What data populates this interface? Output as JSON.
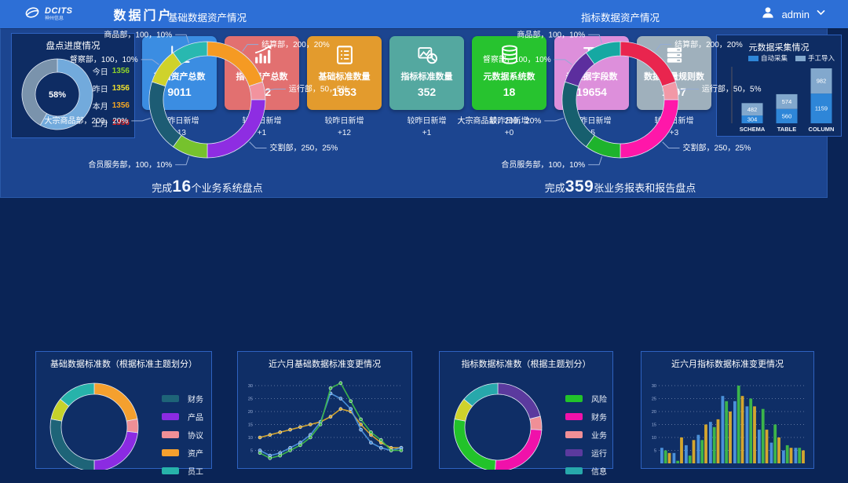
{
  "header": {
    "logo_text": "DCITS",
    "logo_sub": "神州信息",
    "title": "数据门户",
    "user_name": "admin"
  },
  "progress_panel": {
    "title": "盘点进度情况",
    "center_label": "58%",
    "chart_data": {
      "type": "pie",
      "segments": [
        {
          "value": 58,
          "color": "#72aadc"
        },
        {
          "value": 42,
          "color": "#7a93ac"
        }
      ]
    },
    "legend": [
      {
        "label": "今日",
        "value": "1356",
        "color": "#8ed32a"
      },
      {
        "label": "昨日",
        "value": "1356",
        "color": "#f0e12c"
      },
      {
        "label": "本月",
        "value": "1356",
        "color": "#f5a623"
      },
      {
        "label": "上月",
        "value": "1356",
        "color": "#e02020"
      }
    ]
  },
  "kpi_cards": [
    {
      "icon": "line-chart-icon",
      "color": "#3b8de2",
      "label": "基础资产总数",
      "value": "9011",
      "delta_label": "较昨日新增",
      "delta": "+13"
    },
    {
      "icon": "bar-chart-icon",
      "color": "#e27070",
      "label": "指标资产总数",
      "value": "352",
      "delta_label": "较昨日新增",
      "delta": "+1"
    },
    {
      "icon": "list-icon",
      "color": "#e39b2d",
      "label": "基础标准数量",
      "value": "1953",
      "delta_label": "较昨日新增",
      "delta": "+12"
    },
    {
      "icon": "image-chart-icon",
      "color": "#54a8a0",
      "label": "指标标准数量",
      "value": "352",
      "delta_label": "较昨日新增",
      "delta": "+1"
    },
    {
      "icon": "database-icon",
      "color": "#27c32f",
      "label": "元数据系统数",
      "value": "18",
      "delta_label": "较昨日新增",
      "delta": "+0"
    },
    {
      "icon": "field-icon",
      "color": "#dd8fdb",
      "label": "元数据字段数",
      "value": "19654",
      "delta_label": "较昨日新增",
      "delta": "-5"
    },
    {
      "icon": "server-icon",
      "color": "#9fb0bc",
      "label": "数据质量规则数",
      "value": "1397",
      "delta_label": "较昨日新增",
      "delta": "+3"
    }
  ],
  "meta_panel": {
    "title": "元数据采集情况",
    "chart_data": {
      "type": "bar",
      "stacked": true,
      "categories": [
        "SCHEMA",
        "TABLE",
        "COLUMN"
      ],
      "series": [
        {
          "name": "自动采集",
          "color": "#2e86d8",
          "values": [
            304,
            560,
            1159
          ]
        },
        {
          "name": "手工导入",
          "color": "#82a8cd",
          "values": [
            482,
            574,
            982
          ]
        }
      ]
    }
  },
  "asset_panels": [
    {
      "title": "基础数据资产情况",
      "summary": {
        "prefix": "完成",
        "highlight": "16",
        "suffix": "个业务系统盘点"
      },
      "chart_data": {
        "type": "pie",
        "segments": [
          {
            "label": "结算部",
            "value": 200,
            "pct": "20%",
            "color": "#f59a23"
          },
          {
            "label": "运行部",
            "value": 50,
            "pct": "5%",
            "color": "#f2939e"
          },
          {
            "label": "交割部",
            "value": 250,
            "pct": "25%",
            "color": "#8e2de2"
          },
          {
            "label": "合员服务部",
            "value": 100,
            "pct": "10%",
            "color": "#76c22d"
          },
          {
            "label": "大宗商品部",
            "value": 200,
            "pct": "20%",
            "color": "#1d5c74"
          },
          {
            "label": "督察部",
            "value": 100,
            "pct": "10%",
            "color": "#cfd22b"
          },
          {
            "label": "商品部",
            "value": 100,
            "pct": "10%",
            "color": "#29b8b0"
          }
        ]
      }
    },
    {
      "title": "指标数据资产情况",
      "summary": {
        "prefix": "完成",
        "highlight": "359",
        "suffix": "张业务报表和报告盘点"
      },
      "chart_data": {
        "type": "pie",
        "segments": [
          {
            "label": "结算部",
            "value": 200,
            "pct": "20%",
            "color": "#e9254e"
          },
          {
            "label": "运行部",
            "value": 50,
            "pct": "5%",
            "color": "#f298a6"
          },
          {
            "label": "交割部",
            "value": 250,
            "pct": "25%",
            "color": "#ff17a9"
          },
          {
            "label": "合员服务部",
            "value": 100,
            "pct": "10%",
            "color": "#1eb32c"
          },
          {
            "label": "大宗商品部",
            "value": 200,
            "pct": "20%",
            "color": "#175f6e"
          },
          {
            "label": "督察部",
            "value": 100,
            "pct": "10%",
            "color": "#5c2e9e"
          },
          {
            "label": "商品部",
            "value": 100,
            "pct": "10%",
            "color": "#16a8a2"
          }
        ]
      }
    }
  ],
  "bottom_panels": [
    {
      "kind": "donut",
      "title": "基础数据标准数（根据标准主题划分）",
      "legend": [
        {
          "label": "财务",
          "color": "#1e6478"
        },
        {
          "label": "产品",
          "color": "#8b2be2"
        },
        {
          "label": "协议",
          "color": "#ef8f96"
        },
        {
          "label": "资产",
          "color": "#f5a02e"
        },
        {
          "label": "员工",
          "color": "#27b3aa"
        }
      ],
      "chart_data": {
        "type": "pie",
        "segments": [
          {
            "label": "资产",
            "value": 22,
            "color": "#f5a02e"
          },
          {
            "label": "协议",
            "value": 5,
            "color": "#ef8f96"
          },
          {
            "label": "产品",
            "value": 23,
            "color": "#8b2be2"
          },
          {
            "label": "财务",
            "value": 28,
            "color": "#1e6478"
          },
          {
            "label": "",
            "value": 8,
            "color": "#c6d22b"
          },
          {
            "label": "员工",
            "value": 14,
            "color": "#27b3aa"
          }
        ]
      }
    },
    {
      "kind": "line",
      "title": "近六月基础数据标准变更情况",
      "chart_data": {
        "type": "line",
        "y_ticks": [
          5,
          10,
          15,
          20,
          25,
          30
        ],
        "series": [
          {
            "color": "#d4a62e",
            "values": [
              10,
              11,
              12,
              13,
              14,
              15,
              16,
              18,
              21,
              20,
              15,
              11,
              8,
              6,
              6
            ]
          },
          {
            "color": "#4a90d9",
            "values": [
              5,
              3,
              4,
              6,
              8,
              11,
              16,
              27,
              25,
              21,
              13,
              8,
              6,
              5,
              6
            ]
          },
          {
            "color": "#3cb54a",
            "values": [
              4,
              2,
              3,
              5,
              7,
              10,
              15,
              29,
              31,
              24,
              17,
              12,
              9,
              5,
              5
            ]
          }
        ]
      }
    },
    {
      "kind": "donut",
      "title": "指标数据标准数（根据主题划分）",
      "legend": [
        {
          "label": "风险",
          "color": "#22c32a"
        },
        {
          "label": "财务",
          "color": "#f011aa"
        },
        {
          "label": "业务",
          "color": "#f08f96"
        },
        {
          "label": "运行",
          "color": "#5b3a9e"
        },
        {
          "label": "信息",
          "color": "#27a8ab"
        }
      ],
      "chart_data": {
        "type": "pie",
        "segments": [
          {
            "label": "运行",
            "value": 21,
            "color": "#5b3a9e"
          },
          {
            "label": "业务",
            "value": 5,
            "color": "#f08f96"
          },
          {
            "label": "财务",
            "value": 25,
            "color": "#f011aa"
          },
          {
            "label": "风险",
            "value": 27,
            "color": "#22c32a"
          },
          {
            "label": "",
            "value": 8,
            "color": "#cfd22b"
          },
          {
            "label": "信息",
            "value": 14,
            "color": "#27a8ab"
          }
        ]
      }
    },
    {
      "kind": "bar",
      "title": "近六月指标数据标准变更情况",
      "chart_data": {
        "type": "bar",
        "y_ticks": [
          5,
          10,
          15,
          20,
          25,
          30
        ],
        "series": [
          {
            "color": "#4a90d9",
            "values": [
              6,
              4,
              7,
              11,
              16,
              26,
              24,
              22,
              13,
              8,
              5,
              6
            ]
          },
          {
            "color": "#3cb54a",
            "values": [
              5,
              1,
              3,
              9,
              14,
              24,
              30,
              25,
              21,
              15,
              7,
              6
            ]
          },
          {
            "color": "#d4a62e",
            "values": [
              4,
              10,
              9,
              15,
              17,
              20,
              26,
              22,
              13,
              10,
              6,
              5
            ]
          }
        ]
      }
    }
  ]
}
